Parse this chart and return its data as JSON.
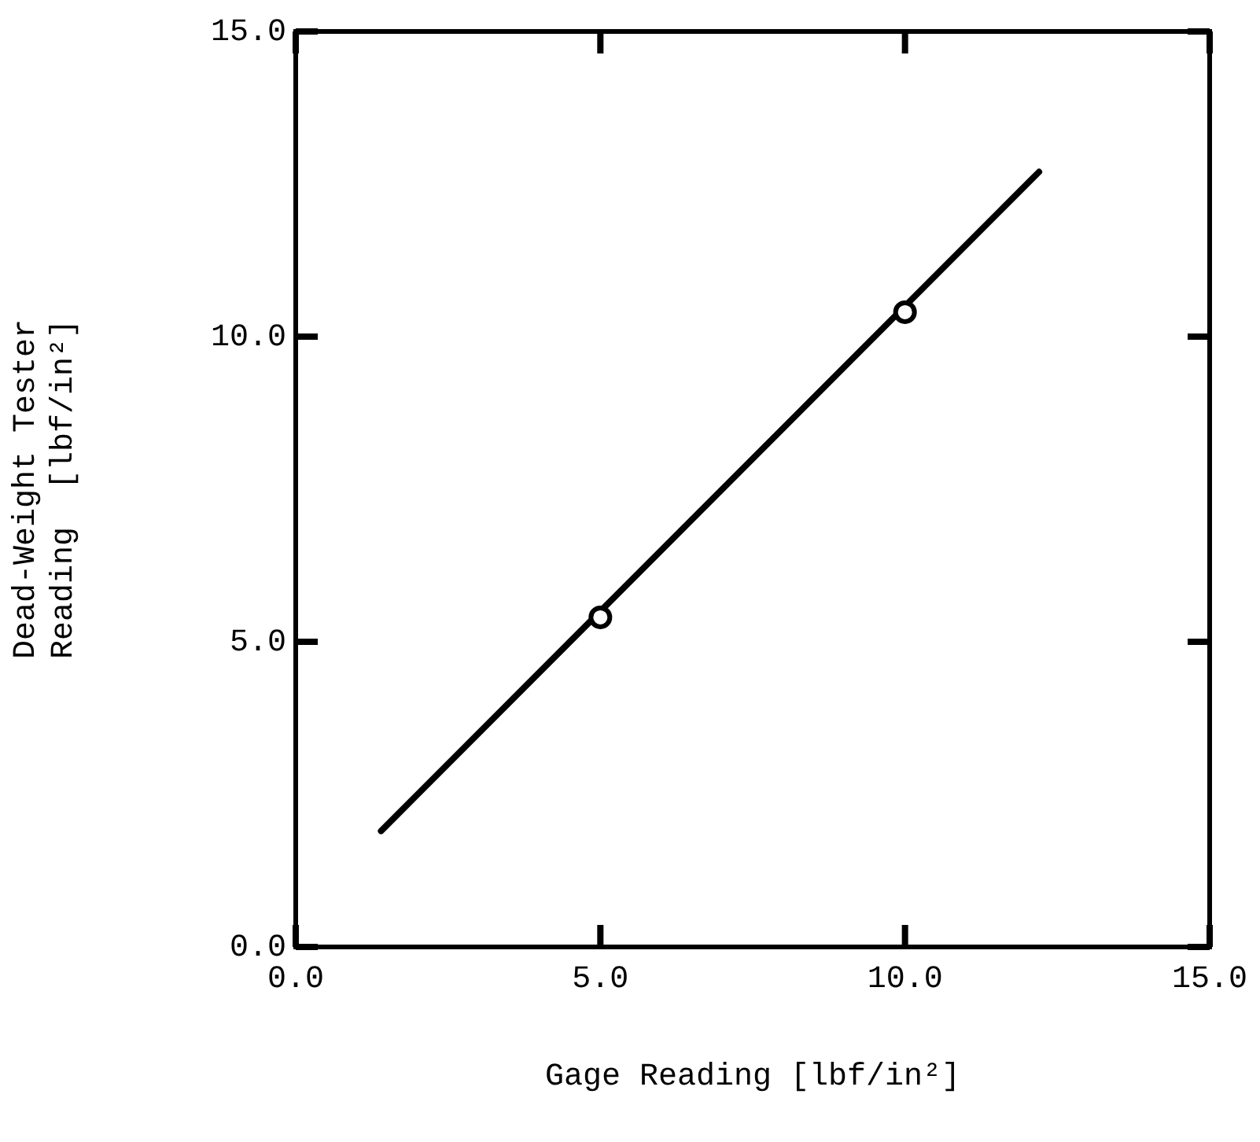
{
  "chart_data": {
    "type": "line",
    "xlabel": "Gage Reading [lbf/in²]",
    "ylabel": "Dead-Weight Tester\nReading  [lbf/in²]",
    "xlim": [
      0,
      15
    ],
    "ylim": [
      0,
      15
    ],
    "xticks": [
      {
        "value": 0,
        "label": "0.0"
      },
      {
        "value": 5,
        "label": "5.0"
      },
      {
        "value": 10,
        "label": "10.0"
      },
      {
        "value": 15,
        "label": "15.0"
      }
    ],
    "yticks": [
      {
        "value": 0,
        "label": "0.0"
      },
      {
        "value": 5,
        "label": "5.0"
      },
      {
        "value": 10,
        "label": "10.0"
      },
      {
        "value": 15,
        "label": "15.0"
      }
    ],
    "grid": false,
    "legend": false,
    "series": [
      {
        "color": "#000000",
        "x": [
          1.4,
          12.2
        ],
        "values": [
          1.9,
          12.7
        ]
      },
      {
        "type": "scatter",
        "color": "#000000",
        "marker": "circle",
        "x": [
          5,
          10
        ],
        "values": [
          5.4,
          10.4
        ]
      }
    ]
  }
}
